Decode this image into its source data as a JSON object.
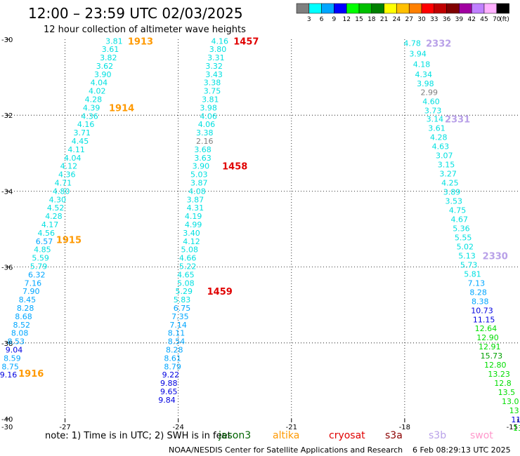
{
  "header": {
    "title": "12:00 – 23:59 UTC 02/03/2025",
    "subtitle": "12 hour collection of altimeter wave heights"
  },
  "colorbar": {
    "labels": [
      "3",
      "6",
      "9",
      "12",
      "15",
      "18",
      "21",
      "24",
      "27",
      "30",
      "33",
      "36",
      "39",
      "42",
      "45",
      "70"
    ],
    "unit": "(ft)",
    "colors": [
      "#7f7f7f",
      "#00ffff",
      "#00a6ff",
      "#0000ff",
      "#00ff00",
      "#00c000",
      "#008000",
      "#ffff00",
      "#ffc000",
      "#ff8000",
      "#ff0000",
      "#c00000",
      "#800000",
      "#a000a0",
      "#c080ff",
      "#ffb0ff",
      "#000000"
    ]
  },
  "axes": {
    "y_ticks": [
      "-30",
      "-32",
      "-34",
      "-36",
      "-38",
      "-40"
    ],
    "x_ticks": [
      "-27",
      "-24",
      "-21",
      "-18",
      "-15"
    ],
    "corner_label": "-30"
  },
  "note": {
    "text": "note: 1) Time is in UTC; 2) SWH is in feet",
    "satellites": [
      {
        "name": "jason3",
        "color": "#006400"
      },
      {
        "name": "altika",
        "color": "#ff9900"
      },
      {
        "name": "cryosat",
        "color": "#e00000"
      },
      {
        "name": "s3a",
        "color": "#8b0000"
      },
      {
        "name": "s3b",
        "color": "#b8a0e8"
      },
      {
        "name": "swot",
        "color": "#ff99cc"
      }
    ]
  },
  "footer": {
    "center": "NOAA/NESDIS Center for Satellite Applications and Research",
    "timestamp": "6 Feb 08:29:13 UTC 2025"
  },
  "chart_data": {
    "type": "scatter",
    "title": "12:00 – 23:59 UTC 02/03/2025",
    "subtitle": "12 hour collection of altimeter wave heights",
    "xlim": [
      -28.5,
      -15
    ],
    "ylim": [
      -40,
      -30
    ],
    "grid": true,
    "tracks": [
      {
        "satellite": "altika",
        "color": "#ff9900",
        "points": [
          {
            "lon": -25.7,
            "lat": -30.05,
            "v": "3.81"
          },
          {
            "lon": -25.8,
            "lat": -30.26,
            "v": "3.61"
          },
          {
            "lon": -25.85,
            "lat": -30.48,
            "v": "3.82"
          },
          {
            "lon": -25.95,
            "lat": -30.7,
            "v": "3.62"
          },
          {
            "lon": -26.0,
            "lat": -30.92,
            "v": "3.90"
          },
          {
            "lon": -26.1,
            "lat": -31.14,
            "v": "4.04"
          },
          {
            "lon": -26.15,
            "lat": -31.36,
            "v": "4.02"
          },
          {
            "lon": -26.25,
            "lat": -31.58,
            "v": "4.28"
          },
          {
            "lon": -26.3,
            "lat": -31.8,
            "v": "4.39"
          },
          {
            "lon": -26.35,
            "lat": -32.02,
            "v": "4.36"
          },
          {
            "lon": -26.45,
            "lat": -32.24,
            "v": "4.16"
          },
          {
            "lon": -26.55,
            "lat": -32.46,
            "v": "3.71"
          },
          {
            "lon": -26.6,
            "lat": -32.68,
            "v": "4.45"
          },
          {
            "lon": -26.7,
            "lat": -32.9,
            "v": "4.11"
          },
          {
            "lon": -26.8,
            "lat": -33.12,
            "v": "4.04"
          },
          {
            "lon": -26.9,
            "lat": -33.34,
            "v": "4.12"
          },
          {
            "lon": -26.95,
            "lat": -33.56,
            "v": "4.36"
          },
          {
            "lon": -27.05,
            "lat": -33.78,
            "v": "4.71"
          },
          {
            "lon": -27.1,
            "lat": -34.0,
            "v": "4.80"
          },
          {
            "lon": -27.2,
            "lat": -34.22,
            "v": "4.30"
          },
          {
            "lon": -27.25,
            "lat": -34.44,
            "v": "4.52"
          },
          {
            "lon": -27.3,
            "lat": -34.66,
            "v": "4.28"
          },
          {
            "lon": -27.4,
            "lat": -34.88,
            "v": "4.17"
          },
          {
            "lon": -27.5,
            "lat": -35.1,
            "v": "4.56"
          },
          {
            "lon": -27.55,
            "lat": -35.32,
            "v": "6.57"
          },
          {
            "lon": -27.6,
            "lat": -35.54,
            "v": "4.85"
          },
          {
            "lon": -27.65,
            "lat": -35.76,
            "v": "5.59"
          },
          {
            "lon": -27.7,
            "lat": -35.98,
            "v": "5.79"
          },
          {
            "lon": -27.75,
            "lat": -36.2,
            "v": "6.32"
          },
          {
            "lon": -27.85,
            "lat": -36.42,
            "v": "7.16"
          },
          {
            "lon": -27.9,
            "lat": -36.64,
            "v": "7.90"
          },
          {
            "lon": -28.0,
            "lat": -36.86,
            "v": "8.45"
          },
          {
            "lon": -28.05,
            "lat": -37.08,
            "v": "8.28"
          },
          {
            "lon": -28.1,
            "lat": -37.3,
            "v": "8.68"
          },
          {
            "lon": -28.15,
            "lat": -37.52,
            "v": "8.52"
          },
          {
            "lon": -28.2,
            "lat": -37.74,
            "v": "8.08"
          },
          {
            "lon": -28.3,
            "lat": -37.96,
            "v": "8.53"
          },
          {
            "lon": -28.35,
            "lat": -38.18,
            "v": "9.04"
          },
          {
            "lon": -28.4,
            "lat": -38.4,
            "v": "8.59"
          },
          {
            "lon": -28.45,
            "lat": -38.62,
            "v": "8.75"
          },
          {
            "lon": -28.5,
            "lat": -38.84,
            "v": "9.16"
          }
        ],
        "time_labels": [
          {
            "lon": -25.0,
            "lat": -30.05,
            "t": "1913"
          },
          {
            "lon": -25.5,
            "lat": -31.8,
            "t": "1914"
          },
          {
            "lon": -26.9,
            "lat": -35.28,
            "t": "1915"
          },
          {
            "lon": -27.9,
            "lat": -38.8,
            "t": "1916"
          }
        ]
      },
      {
        "satellite": "cryosat",
        "color": "#e00000",
        "points": [
          {
            "lon": -22.9,
            "lat": -30.05,
            "v": "4.16"
          },
          {
            "lon": -22.95,
            "lat": -30.26,
            "v": "3.80"
          },
          {
            "lon": -23.0,
            "lat": -30.48,
            "v": "3.31"
          },
          {
            "lon": -23.05,
            "lat": -30.7,
            "v": "3.32"
          },
          {
            "lon": -23.05,
            "lat": -30.92,
            "v": "3.43"
          },
          {
            "lon": -23.1,
            "lat": -31.14,
            "v": "3.38"
          },
          {
            "lon": -23.1,
            "lat": -31.36,
            "v": "3.75"
          },
          {
            "lon": -23.15,
            "lat": -31.58,
            "v": "3.81"
          },
          {
            "lon": -23.2,
            "lat": -31.8,
            "v": "3.98"
          },
          {
            "lon": -23.2,
            "lat": -32.02,
            "v": "4.06"
          },
          {
            "lon": -23.25,
            "lat": -32.24,
            "v": "4.06"
          },
          {
            "lon": -23.3,
            "lat": -32.46,
            "v": "3.38"
          },
          {
            "lon": -23.3,
            "lat": -32.68,
            "v": "2.16"
          },
          {
            "lon": -23.35,
            "lat": -32.9,
            "v": "3.68"
          },
          {
            "lon": -23.35,
            "lat": -33.12,
            "v": "3.63"
          },
          {
            "lon": -23.4,
            "lat": -33.34,
            "v": "3.90"
          },
          {
            "lon": -23.45,
            "lat": -33.56,
            "v": "5.03"
          },
          {
            "lon": -23.45,
            "lat": -33.78,
            "v": "3.87"
          },
          {
            "lon": -23.5,
            "lat": -34.0,
            "v": "4.08"
          },
          {
            "lon": -23.55,
            "lat": -34.22,
            "v": "3.87"
          },
          {
            "lon": -23.55,
            "lat": -34.44,
            "v": "4.31"
          },
          {
            "lon": -23.6,
            "lat": -34.66,
            "v": "4.19"
          },
          {
            "lon": -23.6,
            "lat": -34.88,
            "v": "4.99"
          },
          {
            "lon": -23.65,
            "lat": -35.1,
            "v": "3.40"
          },
          {
            "lon": -23.65,
            "lat": -35.32,
            "v": "4.12"
          },
          {
            "lon": -23.7,
            "lat": -35.54,
            "v": "5.08"
          },
          {
            "lon": -23.75,
            "lat": -35.76,
            "v": "4.66"
          },
          {
            "lon": -23.75,
            "lat": -35.98,
            "v": "5.22"
          },
          {
            "lon": -23.8,
            "lat": -36.2,
            "v": "4.65"
          },
          {
            "lon": -23.8,
            "lat": -36.42,
            "v": "5.08"
          },
          {
            "lon": -23.85,
            "lat": -36.64,
            "v": "5.29"
          },
          {
            "lon": -23.9,
            "lat": -36.86,
            "v": "5.83"
          },
          {
            "lon": -23.9,
            "lat": -37.08,
            "v": "6.75"
          },
          {
            "lon": -23.95,
            "lat": -37.3,
            "v": "7.35"
          },
          {
            "lon": -24.0,
            "lat": -37.52,
            "v": "7.14"
          },
          {
            "lon": -24.05,
            "lat": -37.74,
            "v": "8.11"
          },
          {
            "lon": -24.05,
            "lat": -37.96,
            "v": "8.54"
          },
          {
            "lon": -24.1,
            "lat": -38.18,
            "v": "8.28"
          },
          {
            "lon": -24.15,
            "lat": -38.4,
            "v": "8.61"
          },
          {
            "lon": -24.15,
            "lat": -38.62,
            "v": "8.79"
          },
          {
            "lon": -24.2,
            "lat": -38.84,
            "v": "9.22"
          },
          {
            "lon": -24.25,
            "lat": -39.06,
            "v": "9.88"
          },
          {
            "lon": -24.25,
            "lat": -39.28,
            "v": "9.65"
          },
          {
            "lon": -24.3,
            "lat": -39.5,
            "v": "9.84"
          }
        ],
        "time_labels": [
          {
            "lon": -22.2,
            "lat": -30.05,
            "t": "1457"
          },
          {
            "lon": -22.5,
            "lat": -33.34,
            "t": "1458"
          },
          {
            "lon": -22.9,
            "lat": -36.64,
            "t": "1459"
          }
        ]
      },
      {
        "satellite": "s3b",
        "color": "#b8a0e8",
        "points": [
          {
            "lon": -17.8,
            "lat": -30.1,
            "v": "4.78"
          },
          {
            "lon": -17.65,
            "lat": -30.38,
            "v": "3.94"
          },
          {
            "lon": -17.55,
            "lat": -30.66,
            "v": "4.18"
          },
          {
            "lon": -17.5,
            "lat": -30.92,
            "v": "4.34"
          },
          {
            "lon": -17.45,
            "lat": -31.16,
            "v": "3.98"
          },
          {
            "lon": -17.35,
            "lat": -31.4,
            "v": "2.99"
          },
          {
            "lon": -17.3,
            "lat": -31.64,
            "v": "4.60"
          },
          {
            "lon": -17.25,
            "lat": -31.88,
            "v": "3.73"
          },
          {
            "lon": -17.2,
            "lat": -32.1,
            "v": "3.14"
          },
          {
            "lon": -17.15,
            "lat": -32.34,
            "v": "3.61"
          },
          {
            "lon": -17.1,
            "lat": -32.58,
            "v": "4.28"
          },
          {
            "lon": -17.05,
            "lat": -32.82,
            "v": "4.63"
          },
          {
            "lon": -16.95,
            "lat": -33.06,
            "v": "3.07"
          },
          {
            "lon": -16.9,
            "lat": -33.3,
            "v": "3.15"
          },
          {
            "lon": -16.85,
            "lat": -33.54,
            "v": "3.27"
          },
          {
            "lon": -16.8,
            "lat": -33.78,
            "v": "4.25"
          },
          {
            "lon": -16.75,
            "lat": -34.02,
            "v": "3.89"
          },
          {
            "lon": -16.7,
            "lat": -34.26,
            "v": "3.53"
          },
          {
            "lon": -16.6,
            "lat": -34.5,
            "v": "4.75"
          },
          {
            "lon": -16.55,
            "lat": -34.74,
            "v": "4.67"
          },
          {
            "lon": -16.5,
            "lat": -34.98,
            "v": "5.36"
          },
          {
            "lon": -16.45,
            "lat": -35.22,
            "v": "5.55"
          },
          {
            "lon": -16.4,
            "lat": -35.46,
            "v": "5.02"
          },
          {
            "lon": -16.35,
            "lat": -35.7,
            "v": "5.13"
          },
          {
            "lon": -16.3,
            "lat": -35.94,
            "v": "5.73"
          },
          {
            "lon": -16.2,
            "lat": -36.18,
            "v": "5.81"
          },
          {
            "lon": -16.1,
            "lat": -36.42,
            "v": "7.13"
          },
          {
            "lon": -16.05,
            "lat": -36.66,
            "v": "8.28"
          },
          {
            "lon": -16.0,
            "lat": -36.9,
            "v": "8.38"
          },
          {
            "lon": -15.95,
            "lat": -37.14,
            "v": "10.73"
          },
          {
            "lon": -15.9,
            "lat": -37.38,
            "v": "11.15"
          },
          {
            "lon": -15.85,
            "lat": -37.62,
            "v": "12.64"
          },
          {
            "lon": -15.8,
            "lat": -37.86,
            "v": "12.90"
          },
          {
            "lon": -15.75,
            "lat": -38.1,
            "v": "12.91"
          },
          {
            "lon": -15.7,
            "lat": -38.34,
            "v": "15.73"
          },
          {
            "lon": -15.6,
            "lat": -38.58,
            "v": "12.80"
          },
          {
            "lon": -15.5,
            "lat": -38.82,
            "v": "13.23"
          },
          {
            "lon": -15.4,
            "lat": -39.06,
            "v": "12.8"
          },
          {
            "lon": -15.3,
            "lat": -39.3,
            "v": "13.5"
          },
          {
            "lon": -15.2,
            "lat": -39.54,
            "v": "13.0"
          },
          {
            "lon": -15.1,
            "lat": -39.78,
            "v": "13"
          },
          {
            "lon": -15.05,
            "lat": -40.02,
            "v": "11"
          },
          {
            "lon": -15.0,
            "lat": -40.24,
            "v": "13"
          }
        ],
        "time_labels": [
          {
            "lon": -17.1,
            "lat": -30.1,
            "t": "2332"
          },
          {
            "lon": -16.6,
            "lat": -32.1,
            "t": "2331"
          },
          {
            "lon": -15.6,
            "lat": -35.7,
            "t": "2330"
          }
        ]
      }
    ]
  }
}
